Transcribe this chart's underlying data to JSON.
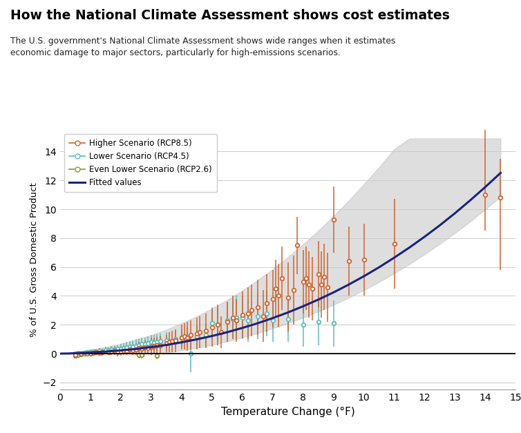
{
  "title": "How the National Climate Assessment shows cost estimates",
  "subtitle": "The U.S. government's National Climate Assessment shows wide ranges when it estimates\neconomic damage to major sectors, particularly for high-emissions scenarios.",
  "xlabel": "Temperature Change (°F)",
  "ylabel": "% of U.S. Gross Domestic Product",
  "xlim": [
    0,
    15
  ],
  "ylim": [
    -2.5,
    15.5
  ],
  "xticks": [
    0,
    1,
    2,
    3,
    4,
    5,
    6,
    7,
    8,
    9,
    10,
    11,
    12,
    13,
    14,
    15
  ],
  "yticks": [
    -2,
    0,
    2,
    4,
    6,
    8,
    10,
    12,
    14
  ],
  "color_higher": "#D2622A",
  "color_lower": "#5BBCB8",
  "color_even_lower": "#8A9A2A",
  "color_fitted": "#1A237E",
  "color_band": "#C8C8C8",
  "higher_data": [
    [
      0.5,
      -0.1,
      -0.2,
      0.1
    ],
    [
      0.7,
      0.0,
      -0.1,
      0.1
    ],
    [
      0.9,
      0.0,
      -0.1,
      0.15
    ],
    [
      1.0,
      0.0,
      -0.15,
      0.2
    ],
    [
      1.1,
      0.05,
      -0.1,
      0.2
    ],
    [
      1.2,
      0.1,
      -0.1,
      0.3
    ],
    [
      1.3,
      0.05,
      -0.1,
      0.2
    ],
    [
      1.4,
      0.1,
      -0.15,
      0.3
    ],
    [
      1.6,
      0.1,
      -0.1,
      0.3
    ],
    [
      1.7,
      0.15,
      -0.1,
      0.4
    ],
    [
      1.8,
      0.2,
      -0.1,
      0.5
    ],
    [
      1.9,
      0.1,
      -0.2,
      0.4
    ],
    [
      2.0,
      0.15,
      -0.15,
      0.45
    ],
    [
      2.1,
      0.2,
      -0.1,
      0.5
    ],
    [
      2.2,
      0.2,
      -0.1,
      0.5
    ],
    [
      2.3,
      0.3,
      -0.05,
      0.6
    ],
    [
      2.4,
      0.25,
      -0.1,
      0.55
    ],
    [
      2.5,
      0.3,
      -0.1,
      0.7
    ],
    [
      2.6,
      0.4,
      0.0,
      0.8
    ],
    [
      2.7,
      0.35,
      -0.05,
      0.75
    ],
    [
      2.8,
      0.45,
      0.0,
      0.9
    ],
    [
      2.9,
      0.4,
      -0.05,
      0.85
    ],
    [
      3.0,
      0.5,
      -0.1,
      1.1
    ],
    [
      3.1,
      0.55,
      0.0,
      1.1
    ],
    [
      3.2,
      0.6,
      0.05,
      1.15
    ],
    [
      3.3,
      0.6,
      0.05,
      1.2
    ],
    [
      3.5,
      0.7,
      0.1,
      1.3
    ],
    [
      3.6,
      0.8,
      0.1,
      1.5
    ],
    [
      3.7,
      0.85,
      0.1,
      1.6
    ],
    [
      3.8,
      0.9,
      0.1,
      1.7
    ],
    [
      4.0,
      1.1,
      0.3,
      2.0
    ],
    [
      4.1,
      1.2,
      0.3,
      2.1
    ],
    [
      4.2,
      1.1,
      0.2,
      2.2
    ],
    [
      4.3,
      1.3,
      0.3,
      2.3
    ],
    [
      4.5,
      1.4,
      0.3,
      2.5
    ],
    [
      4.6,
      1.5,
      0.4,
      2.6
    ],
    [
      4.8,
      1.6,
      0.4,
      2.8
    ],
    [
      5.0,
      1.8,
      0.5,
      3.1
    ],
    [
      5.2,
      2.0,
      0.6,
      3.4
    ],
    [
      5.3,
      1.5,
      0.4,
      2.6
    ],
    [
      5.5,
      2.2,
      0.8,
      3.6
    ],
    [
      5.7,
      2.5,
      1.0,
      4.0
    ],
    [
      5.8,
      2.3,
      0.8,
      3.8
    ],
    [
      6.0,
      2.7,
      1.1,
      4.3
    ],
    [
      6.2,
      2.8,
      1.0,
      4.6
    ],
    [
      6.3,
      3.0,
      1.2,
      4.8
    ],
    [
      6.5,
      3.2,
      1.3,
      5.1
    ],
    [
      6.7,
      2.6,
      0.8,
      4.4
    ],
    [
      6.8,
      3.5,
      1.5,
      5.5
    ],
    [
      7.0,
      3.8,
      1.8,
      5.8
    ],
    [
      7.1,
      4.5,
      2.5,
      6.5
    ],
    [
      7.2,
      4.0,
      1.8,
      6.2
    ],
    [
      7.3,
      5.2,
      3.0,
      7.4
    ],
    [
      7.5,
      3.9,
      1.5,
      6.3
    ],
    [
      7.7,
      4.4,
      2.0,
      6.8
    ],
    [
      7.8,
      7.5,
      5.5,
      9.5
    ],
    [
      8.0,
      5.0,
      2.8,
      7.2
    ],
    [
      8.1,
      5.2,
      3.0,
      7.4
    ],
    [
      8.2,
      4.8,
      2.5,
      7.1
    ],
    [
      8.3,
      4.5,
      2.3,
      6.7
    ],
    [
      8.5,
      5.5,
      3.2,
      7.8
    ],
    [
      8.6,
      4.8,
      2.5,
      7.1
    ],
    [
      8.7,
      5.3,
      3.0,
      7.6
    ],
    [
      8.8,
      4.6,
      2.2,
      7.0
    ],
    [
      9.0,
      9.3,
      7.0,
      11.6
    ],
    [
      9.5,
      6.4,
      4.0,
      8.8
    ],
    [
      10.0,
      6.5,
      4.0,
      9.0
    ],
    [
      11.0,
      7.6,
      4.5,
      10.7
    ],
    [
      14.0,
      11.0,
      8.5,
      15.5
    ],
    [
      14.5,
      10.8,
      5.8,
      13.5
    ]
  ],
  "lower_data": [
    [
      0.5,
      0.0,
      -0.1,
      0.1
    ],
    [
      0.6,
      0.05,
      -0.1,
      0.15
    ],
    [
      0.7,
      0.0,
      -0.1,
      0.15
    ],
    [
      0.8,
      0.05,
      -0.1,
      0.2
    ],
    [
      0.9,
      0.1,
      -0.05,
      0.25
    ],
    [
      1.0,
      0.1,
      -0.05,
      0.3
    ],
    [
      1.1,
      0.15,
      0.0,
      0.3
    ],
    [
      1.2,
      0.1,
      -0.05,
      0.3
    ],
    [
      1.3,
      0.2,
      0.05,
      0.4
    ],
    [
      1.4,
      0.15,
      0.0,
      0.35
    ],
    [
      1.5,
      0.25,
      0.05,
      0.5
    ],
    [
      1.6,
      0.2,
      0.0,
      0.45
    ],
    [
      1.7,
      0.3,
      0.05,
      0.55
    ],
    [
      1.8,
      0.3,
      0.05,
      0.6
    ],
    [
      1.9,
      0.35,
      0.1,
      0.6
    ],
    [
      2.0,
      0.35,
      0.05,
      0.65
    ],
    [
      2.1,
      0.4,
      0.1,
      0.7
    ],
    [
      2.2,
      0.45,
      0.1,
      0.8
    ],
    [
      2.3,
      0.5,
      0.15,
      0.85
    ],
    [
      2.4,
      0.5,
      0.1,
      0.9
    ],
    [
      2.5,
      0.55,
      0.1,
      1.0
    ],
    [
      2.6,
      0.6,
      0.15,
      1.05
    ],
    [
      2.7,
      0.65,
      0.2,
      1.1
    ],
    [
      2.8,
      0.65,
      0.2,
      1.1
    ],
    [
      2.9,
      0.7,
      0.2,
      1.2
    ],
    [
      3.0,
      0.8,
      0.3,
      1.3
    ],
    [
      3.1,
      0.75,
      0.2,
      1.3
    ],
    [
      3.2,
      0.8,
      0.25,
      1.35
    ],
    [
      3.3,
      0.85,
      0.3,
      1.4
    ],
    [
      3.5,
      0.9,
      0.3,
      1.5
    ],
    [
      3.8,
      1.0,
      0.4,
      1.6
    ],
    [
      4.0,
      1.1,
      0.5,
      1.7
    ],
    [
      4.2,
      1.1,
      0.4,
      1.8
    ],
    [
      4.3,
      0.0,
      -1.3,
      1.3
    ],
    [
      4.5,
      1.2,
      0.5,
      1.9
    ],
    [
      4.8,
      1.3,
      0.5,
      2.1
    ],
    [
      5.0,
      2.1,
      1.0,
      3.2
    ],
    [
      5.2,
      2.0,
      0.8,
      3.2
    ],
    [
      5.5,
      2.3,
      1.0,
      3.6
    ],
    [
      5.7,
      2.4,
      1.0,
      3.8
    ],
    [
      5.8,
      2.5,
      1.0,
      4.0
    ],
    [
      6.0,
      2.5,
      1.0,
      4.0
    ],
    [
      6.2,
      2.3,
      0.8,
      3.8
    ],
    [
      6.5,
      2.6,
      1.0,
      4.2
    ],
    [
      6.8,
      2.8,
      1.2,
      4.4
    ],
    [
      7.0,
      2.3,
      0.8,
      3.8
    ],
    [
      7.5,
      2.4,
      0.8,
      4.0
    ],
    [
      8.0,
      2.0,
      0.5,
      3.5
    ],
    [
      8.5,
      2.2,
      0.6,
      3.8
    ],
    [
      9.0,
      2.1,
      0.5,
      3.7
    ]
  ],
  "even_lower_data": [
    [
      0.5,
      -0.15,
      -0.25,
      -0.05
    ],
    [
      0.6,
      -0.1,
      -0.2,
      0.0
    ],
    [
      0.7,
      -0.05,
      -0.15,
      0.05
    ],
    [
      0.8,
      0.0,
      -0.1,
      0.1
    ],
    [
      0.9,
      0.05,
      -0.1,
      0.2
    ],
    [
      1.0,
      0.1,
      -0.05,
      0.25
    ],
    [
      1.1,
      0.05,
      -0.1,
      0.2
    ],
    [
      1.2,
      0.1,
      -0.05,
      0.25
    ],
    [
      1.3,
      0.1,
      -0.05,
      0.25
    ],
    [
      1.4,
      0.15,
      0.0,
      0.3
    ],
    [
      1.5,
      0.2,
      0.05,
      0.35
    ],
    [
      1.6,
      0.2,
      0.05,
      0.35
    ],
    [
      1.7,
      0.25,
      0.05,
      0.45
    ],
    [
      1.8,
      0.2,
      0.0,
      0.4
    ],
    [
      1.9,
      0.25,
      0.05,
      0.45
    ],
    [
      2.0,
      0.3,
      0.05,
      0.55
    ],
    [
      2.1,
      0.3,
      0.05,
      0.55
    ],
    [
      2.2,
      0.35,
      0.1,
      0.6
    ],
    [
      2.3,
      0.35,
      0.1,
      0.6
    ],
    [
      2.4,
      0.4,
      0.1,
      0.7
    ],
    [
      2.5,
      0.4,
      0.1,
      0.7
    ],
    [
      2.6,
      -0.1,
      -0.35,
      0.15
    ],
    [
      2.7,
      -0.1,
      -0.35,
      0.15
    ],
    [
      2.8,
      0.45,
      0.15,
      0.75
    ],
    [
      3.0,
      0.5,
      0.2,
      0.8
    ],
    [
      3.2,
      -0.15,
      -0.4,
      0.1
    ]
  ],
  "fitted_x": [
    0.0,
    0.3,
    0.6,
    1.0,
    1.5,
    2.0,
    2.5,
    3.0,
    3.5,
    4.0,
    4.5,
    5.0,
    5.5,
    6.0,
    6.5,
    7.0,
    7.5,
    8.0,
    8.5,
    9.0,
    9.5,
    10.0,
    10.5,
    11.0,
    11.5,
    12.0,
    12.5,
    13.0,
    13.5,
    14.0,
    14.5
  ],
  "fitted_y": [
    0.0,
    0.01,
    0.04,
    0.08,
    0.14,
    0.22,
    0.32,
    0.45,
    0.6,
    0.78,
    0.99,
    1.22,
    1.48,
    1.78,
    2.1,
    2.46,
    2.85,
    3.28,
    3.74,
    4.24,
    4.78,
    5.36,
    5.98,
    6.65,
    7.35,
    8.1,
    8.89,
    9.73,
    10.62,
    11.55,
    12.52
  ],
  "band_upper": [
    0.0,
    0.05,
    0.15,
    0.28,
    0.45,
    0.68,
    0.96,
    1.28,
    1.66,
    2.1,
    2.58,
    3.12,
    3.72,
    4.37,
    5.08,
    5.85,
    6.68,
    7.57,
    8.52,
    9.53,
    10.6,
    11.73,
    12.92,
    14.17,
    14.9,
    14.9,
    14.9,
    14.9,
    14.9,
    14.9,
    14.9
  ],
  "band_lower": [
    0.0,
    0.0,
    0.0,
    0.0,
    0.0,
    0.0,
    0.0,
    0.0,
    0.08,
    0.22,
    0.4,
    0.6,
    0.85,
    1.12,
    1.42,
    1.75,
    2.1,
    2.5,
    2.92,
    3.38,
    3.87,
    4.4,
    4.96,
    5.56,
    6.2,
    6.88,
    7.6,
    8.36,
    9.16,
    10.0,
    10.88
  ]
}
